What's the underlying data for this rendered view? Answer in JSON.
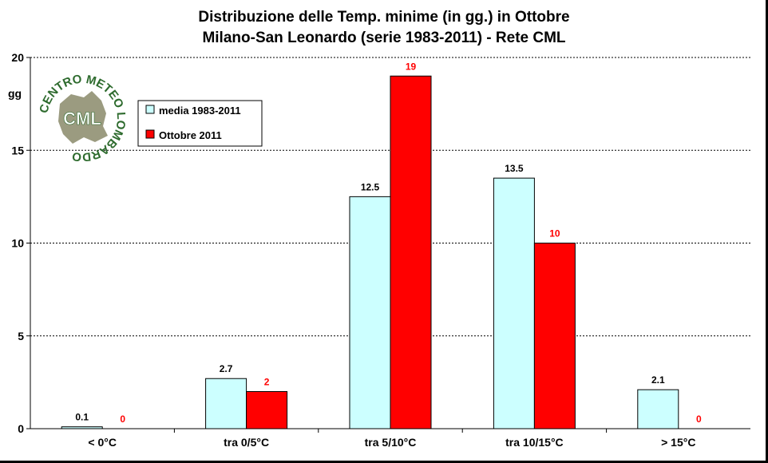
{
  "chart_data": {
    "type": "bar",
    "title": "Distribuzione delle Temp. minime (in gg.) in Ottobre",
    "subtitle": "Milano-San Leonardo (serie 1983-2011) - Rete CML",
    "ylabel": "gg",
    "xlabel": "",
    "ylim": [
      0,
      20
    ],
    "yticks": [
      0,
      5,
      10,
      15,
      20
    ],
    "grid": true,
    "legend_position": "top-left",
    "categories": [
      "< 0°C",
      "tra 0/5°C",
      "tra 5/10°C",
      "tra 10/15°C",
      "> 15°C"
    ],
    "series": [
      {
        "name": "media 1983-2011",
        "values": [
          0.1,
          2.7,
          12.5,
          13.5,
          2.1
        ],
        "labels": [
          "0.1",
          "2.7",
          "12.5",
          "13.5",
          "2.1"
        ],
        "color": "#CCFFFF",
        "label_color": "#000000"
      },
      {
        "name": "Ottobre 2011",
        "values": [
          0,
          2,
          19,
          10,
          0
        ],
        "labels": [
          "0",
          "2",
          "19",
          "10",
          "0"
        ],
        "color": "#FF0000",
        "label_color": "#FF0000"
      }
    ]
  },
  "logo": {
    "ring_text": "CENTRO METEO LOMBARDO",
    "center_text": "CML",
    "colors": {
      "text": "#2E6B2E",
      "shape": "#8A8A6A"
    }
  }
}
